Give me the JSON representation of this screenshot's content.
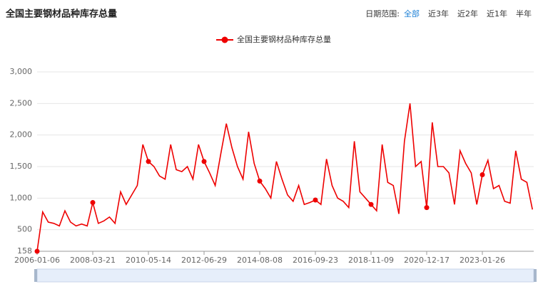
{
  "header": {
    "title": "全国主要钢材品种库存总量",
    "range_label": "日期范围:",
    "range_options": [
      "全部",
      "近3年",
      "近2年",
      "近1年",
      "半年"
    ]
  },
  "chart_data": {
    "type": "line",
    "categories": [
      "2006-01-06",
      null,
      null,
      null,
      null,
      null,
      null,
      null,
      null,
      null,
      "2008-03-21",
      null,
      null,
      null,
      null,
      null,
      null,
      null,
      null,
      null,
      "2010-05-14",
      null,
      null,
      null,
      null,
      null,
      null,
      null,
      null,
      null,
      "2012-06-29",
      null,
      null,
      null,
      null,
      null,
      null,
      null,
      null,
      null,
      "2014-08-08",
      null,
      null,
      null,
      null,
      null,
      null,
      null,
      null,
      null,
      "2016-09-23",
      null,
      null,
      null,
      null,
      null,
      null,
      null,
      null,
      null,
      "2018-11-09",
      null,
      null,
      null,
      null,
      null,
      null,
      null,
      null,
      null,
      "2020-12-17",
      null,
      null,
      null,
      null,
      null,
      null,
      null,
      null,
      null,
      "2023-01-26",
      null,
      null,
      null,
      null,
      null,
      null,
      null,
      null,
      null
    ],
    "series": [
      {
        "name": "全国主要钢材品种库存总量",
        "color": "#ee0000",
        "values": [
          158,
          780,
          620,
          600,
          560,
          800,
          620,
          560,
          590,
          560,
          930,
          600,
          640,
          700,
          600,
          1100,
          900,
          1050,
          1200,
          1850,
          1580,
          1500,
          1350,
          1300,
          1850,
          1450,
          1420,
          1500,
          1300,
          1850,
          1580,
          1400,
          1200,
          1700,
          2180,
          1800,
          1500,
          1300,
          2050,
          1550,
          1270,
          1150,
          1000,
          1580,
          1300,
          1050,
          950,
          1200,
          900,
          930,
          970,
          900,
          1620,
          1200,
          1000,
          950,
          850,
          1900,
          1100,
          1000,
          900,
          800,
          1850,
          1250,
          1200,
          750,
          1900,
          2500,
          1500,
          1580,
          850,
          2200,
          1500,
          1500,
          1400,
          900,
          1750,
          1550,
          1400,
          900,
          1370,
          1600,
          1150,
          1200,
          950,
          920,
          1750,
          1300,
          1250,
          820
        ]
      }
    ],
    "ylim": [
      158,
      3000
    ],
    "yticks": [
      158,
      500,
      {
        "value": 1000,
        "label": "1,000"
      },
      {
        "value": 1500,
        "label": "1,500"
      },
      {
        "value": 2000,
        "label": "2,000"
      },
      {
        "value": 2500,
        "label": "2,500"
      },
      {
        "value": 3000,
        "label": "3,000"
      }
    ],
    "grid": true
  }
}
